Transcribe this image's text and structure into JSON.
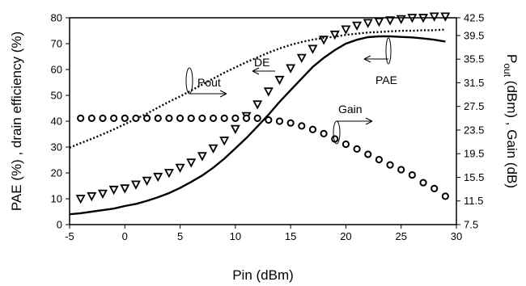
{
  "chart_data": {
    "type": "line",
    "xlabel": "Pin (dBm)",
    "ylabel_left": "PAE (%) , drain efficiency (%)",
    "ylabel_right_main": "P",
    "ylabel_right_sub": "out",
    "ylabel_right_rest": " (dBm) , Gain (dB)",
    "xlim": [
      -5,
      30
    ],
    "ylim_left": [
      0,
      80
    ],
    "ylim_right": [
      7.5,
      42.5
    ],
    "x_ticks": [
      -5,
      0,
      5,
      10,
      15,
      20,
      25,
      30
    ],
    "x_tick_labels": [
      "-5",
      "0",
      "5",
      "10",
      "15",
      "20",
      "25",
      "30"
    ],
    "y_left_ticks": [
      0,
      10,
      20,
      30,
      40,
      50,
      60,
      70,
      80
    ],
    "y_left_tick_labels": [
      "0",
      "10",
      "20",
      "30",
      "40",
      "50",
      "60",
      "70",
      "80"
    ],
    "y_right_ticks": [
      7.5,
      11.5,
      15.5,
      19.5,
      23.5,
      27.5,
      31.5,
      35.5,
      39.5,
      42.5
    ],
    "y_right_tick_labels": [
      "7.5",
      "11.5",
      "15.5",
      "19.5",
      "23.5",
      "27.5",
      "31.5",
      "35.5",
      "39.5",
      "42.5"
    ],
    "series": [
      {
        "name": "PAE",
        "axis": "left",
        "style": "solid",
        "x": [
          -5,
          -4,
          -3,
          -2,
          -1,
          0,
          1,
          2,
          3,
          4,
          5,
          6,
          7,
          8,
          9,
          10,
          11,
          12,
          13,
          14,
          15,
          16,
          17,
          18,
          19,
          20,
          21,
          22,
          23,
          24,
          25,
          26,
          27,
          28,
          29
        ],
        "values": [
          4,
          4.4,
          5,
          5.6,
          6.2,
          7.2,
          8,
          9.2,
          10.6,
          12.2,
          14.2,
          16.5,
          19,
          22,
          25.5,
          29.5,
          33.5,
          38,
          42.5,
          47.5,
          52,
          56.5,
          61,
          64.5,
          67.5,
          70,
          71.5,
          72.5,
          72.8,
          72.8,
          72.6,
          72.4,
          72,
          71.5,
          70.8
        ]
      },
      {
        "name": "DE",
        "axis": "left",
        "style": "triangle-down",
        "x": [
          -4,
          -3,
          -2,
          -1,
          0,
          1,
          2,
          3,
          4,
          5,
          6,
          7,
          8,
          9,
          10,
          11,
          12,
          13,
          14,
          15,
          16,
          17,
          18,
          19,
          20,
          21,
          22,
          23,
          24,
          25,
          26,
          27,
          28,
          29
        ],
        "values": [
          10,
          11,
          12,
          13.5,
          14,
          15.5,
          17,
          18.5,
          20,
          22,
          24,
          26.5,
          29.5,
          32.5,
          37,
          42,
          46.5,
          51.5,
          56,
          60.5,
          64.5,
          68,
          71.5,
          73.5,
          75.5,
          77,
          78,
          78.5,
          79,
          79.5,
          80,
          80,
          80.5,
          80.5
        ]
      },
      {
        "name": "Pout",
        "axis": "right",
        "style": "dotted",
        "x": [
          -5,
          -4,
          -3,
          -2,
          -1,
          0,
          1,
          2,
          3,
          4,
          5,
          6,
          7,
          8,
          9,
          10,
          11,
          12,
          13,
          14,
          15,
          16,
          17,
          18,
          19,
          20,
          21,
          22,
          23,
          24,
          25,
          26,
          27,
          28,
          29
        ],
        "values": [
          20.5,
          21.3,
          22.0,
          22.8,
          23.6,
          24.5,
          25.4,
          26.3,
          27.3,
          28.3,
          29.2,
          30.2,
          31.2,
          32.2,
          33.2,
          34.1,
          35.0,
          35.8,
          36.6,
          37.3,
          37.9,
          38.4,
          38.8,
          39.1,
          39.3,
          39.6,
          39.8,
          40.0,
          40.1,
          40.2,
          40.3,
          40.3,
          40.4,
          40.4,
          40.5
        ]
      },
      {
        "name": "Gain",
        "axis": "right",
        "style": "circle",
        "x": [
          -4,
          -3,
          -2,
          -1,
          0,
          1,
          2,
          3,
          4,
          5,
          6,
          7,
          8,
          9,
          10,
          11,
          12,
          13,
          14,
          15,
          16,
          17,
          18,
          19,
          20,
          21,
          22,
          23,
          24,
          25,
          26,
          27,
          28,
          29
        ],
        "values": [
          25.5,
          25.5,
          25.5,
          25.5,
          25.5,
          25.5,
          25.5,
          25.5,
          25.5,
          25.5,
          25.5,
          25.5,
          25.5,
          25.5,
          25.5,
          25.5,
          25.5,
          25.2,
          25.0,
          24.7,
          24.2,
          23.6,
          22.9,
          22.0,
          21.1,
          20.3,
          19.4,
          18.5,
          17.6,
          16.8,
          15.9,
          14.6,
          13.6,
          12.3
        ]
      }
    ],
    "annotations": [
      {
        "text": "DE",
        "arrow": "left"
      },
      {
        "text": "Pout",
        "arrow": "right"
      },
      {
        "text": "PAE",
        "arrow": "left"
      },
      {
        "text": "Gain",
        "arrow": "right"
      }
    ],
    "grid": false
  }
}
